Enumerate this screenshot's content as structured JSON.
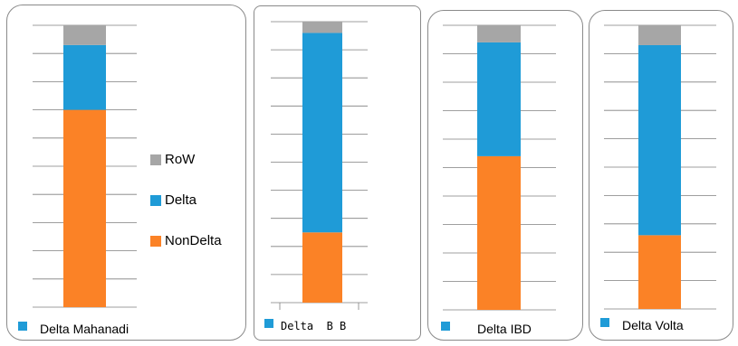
{
  "colors": {
    "row": "#a6a6a6",
    "delta": "#1f9bd7",
    "nondelta": "#fb8226",
    "grid": "#7f7f7f"
  },
  "legend": {
    "items": [
      {
        "label": "RoW",
        "color": "#a6a6a6"
      },
      {
        "label": "Delta",
        "color": "#1f9bd7"
      },
      {
        "label": "NonDelta",
        "color": "#fb8226"
      }
    ]
  },
  "chart_data": [
    {
      "type": "bar",
      "stacked": true,
      "categories": [
        "Delta Mahanadi"
      ],
      "ylim": [
        0,
        100
      ],
      "gridlines": 10,
      "series": [
        {
          "name": "NonDelta",
          "values": [
            70
          ]
        },
        {
          "name": "Delta",
          "values": [
            23
          ]
        },
        {
          "name": "RoW",
          "values": [
            7
          ]
        }
      ]
    },
    {
      "type": "bar",
      "stacked": true,
      "categories": [
        "Delta  B B"
      ],
      "ylim": [
        0,
        100
      ],
      "gridlines": 10,
      "series": [
        {
          "name": "NonDelta",
          "values": [
            25
          ]
        },
        {
          "name": "Delta",
          "values": [
            71
          ]
        },
        {
          "name": "RoW",
          "values": [
            4
          ]
        }
      ]
    },
    {
      "type": "bar",
      "stacked": true,
      "categories": [
        "Delta IBD"
      ],
      "ylim": [
        0,
        100
      ],
      "gridlines": 10,
      "series": [
        {
          "name": "NonDelta",
          "values": [
            54
          ]
        },
        {
          "name": "Delta",
          "values": [
            40
          ]
        },
        {
          "name": "RoW",
          "values": [
            6
          ]
        }
      ]
    },
    {
      "type": "bar",
      "stacked": true,
      "categories": [
        "Delta Volta"
      ],
      "ylim": [
        0,
        100
      ],
      "gridlines": 10,
      "series": [
        {
          "name": "NonDelta",
          "values": [
            26
          ]
        },
        {
          "name": "Delta",
          "values": [
            67
          ]
        },
        {
          "name": "RoW",
          "values": [
            7
          ]
        }
      ]
    }
  ]
}
